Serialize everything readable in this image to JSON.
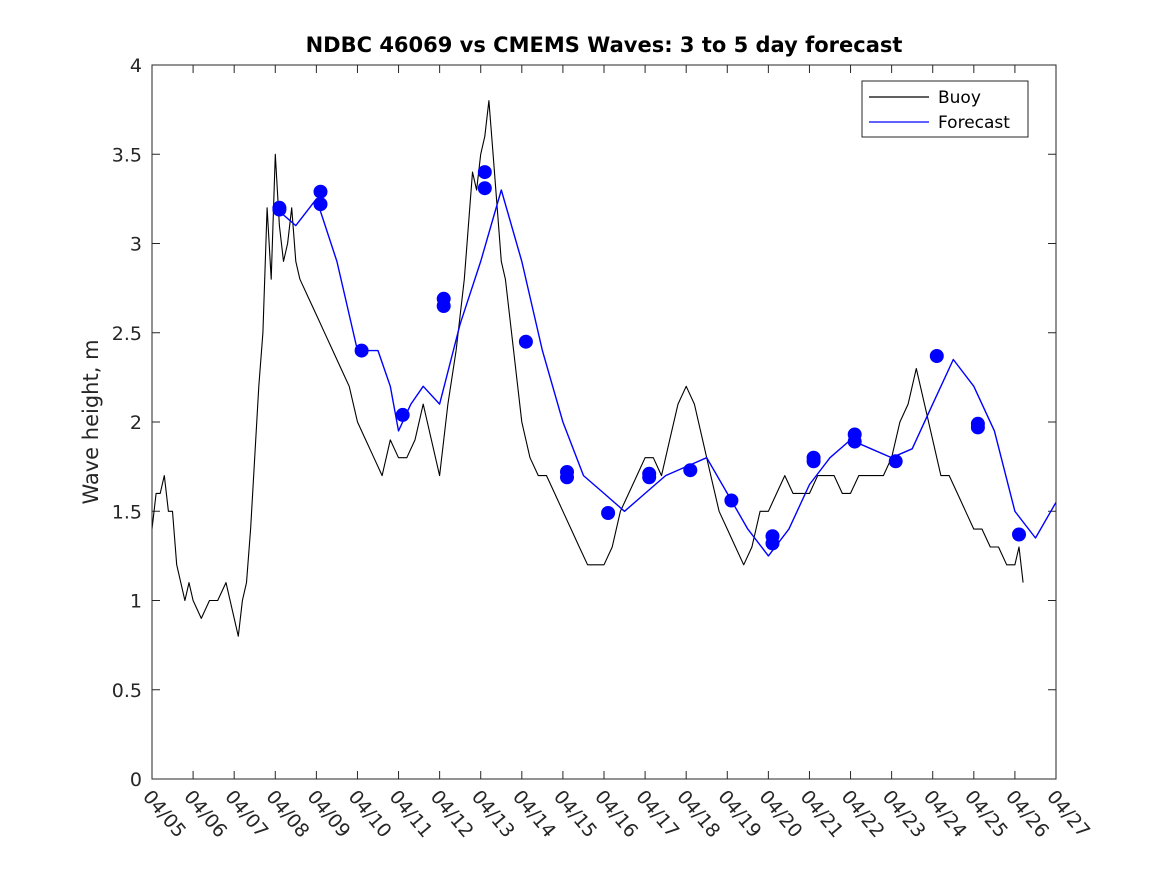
{
  "chart_data": {
    "type": "line",
    "title": "NDBC 46069 vs CMEMS Waves: 3 to 5 day forecast",
    "xlabel": "",
    "ylabel": "Wave height, m",
    "xlim": [
      "04/05",
      "04/27"
    ],
    "ylim": [
      0,
      4
    ],
    "x_ticks": [
      "04/05",
      "04/06",
      "04/07",
      "04/08",
      "04/09",
      "04/10",
      "04/11",
      "04/12",
      "04/13",
      "04/14",
      "04/15",
      "04/16",
      "04/17",
      "04/18",
      "04/19",
      "04/20",
      "04/21",
      "04/22",
      "04/23",
      "04/24",
      "04/25",
      "04/26",
      "04/27"
    ],
    "y_ticks": [
      "0",
      "0.5",
      "1",
      "1.5",
      "2",
      "2.5",
      "3",
      "3.5",
      "4"
    ],
    "grid": false,
    "legend_position": "top-right",
    "legend": [
      "Buoy",
      "Forecast"
    ],
    "colors": {
      "buoy": "#000000",
      "forecast": "#0000ff"
    },
    "series": [
      {
        "name": "Buoy",
        "x": [
          0,
          0.1,
          0.2,
          0.3,
          0.4,
          0.5,
          0.6,
          0.7,
          0.8,
          0.9,
          1.0,
          1.2,
          1.4,
          1.6,
          1.8,
          1.9,
          2.0,
          2.1,
          2.2,
          2.3,
          2.4,
          2.5,
          2.6,
          2.7,
          2.8,
          2.9,
          3.0,
          3.1,
          3.2,
          3.3,
          3.4,
          3.5,
          3.6,
          3.8,
          4.0,
          4.2,
          4.4,
          4.6,
          4.8,
          5.0,
          5.2,
          5.4,
          5.6,
          5.8,
          6.0,
          6.2,
          6.4,
          6.6,
          6.8,
          7.0,
          7.2,
          7.4,
          7.6,
          7.8,
          7.9,
          8.0,
          8.1,
          8.2,
          8.3,
          8.4,
          8.5,
          8.6,
          8.8,
          9.0,
          9.2,
          9.4,
          9.6,
          9.8,
          10.0,
          10.2,
          10.4,
          10.6,
          10.8,
          11.0,
          11.2,
          11.4,
          11.6,
          11.8,
          12.0,
          12.2,
          12.4,
          12.6,
          12.8,
          13.0,
          13.2,
          13.4,
          13.6,
          13.8,
          14.0,
          14.2,
          14.4,
          14.6,
          14.8,
          15.0,
          15.2,
          15.4,
          15.6,
          15.8,
          16.0,
          16.2,
          16.4,
          16.6,
          16.8,
          17.0,
          17.2,
          17.4,
          17.6,
          17.8,
          18.0,
          18.2,
          18.4,
          18.6,
          18.8,
          19.0,
          19.2,
          19.4,
          19.6,
          19.8,
          20.0,
          20.2,
          20.4,
          20.6,
          20.8,
          21.0,
          21.1,
          21.2
        ],
        "values": [
          1.4,
          1.6,
          1.6,
          1.7,
          1.5,
          1.5,
          1.2,
          1.1,
          1.0,
          1.1,
          1.0,
          0.9,
          1.0,
          1.0,
          1.1,
          1.0,
          0.9,
          0.8,
          1.0,
          1.1,
          1.4,
          1.8,
          2.2,
          2.5,
          3.2,
          2.8,
          3.5,
          3.1,
          2.9,
          3.0,
          3.2,
          2.9,
          2.8,
          2.7,
          2.6,
          2.5,
          2.4,
          2.3,
          2.2,
          2.0,
          1.9,
          1.8,
          1.7,
          1.9,
          1.8,
          1.8,
          1.9,
          2.1,
          1.9,
          1.7,
          2.1,
          2.4,
          2.8,
          3.4,
          3.3,
          3.5,
          3.6,
          3.8,
          3.5,
          3.2,
          2.9,
          2.8,
          2.4,
          2.0,
          1.8,
          1.7,
          1.7,
          1.6,
          1.5,
          1.4,
          1.3,
          1.2,
          1.2,
          1.2,
          1.3,
          1.5,
          1.6,
          1.7,
          1.8,
          1.8,
          1.7,
          1.9,
          2.1,
          2.2,
          2.1,
          1.9,
          1.7,
          1.5,
          1.4,
          1.3,
          1.2,
          1.3,
          1.5,
          1.5,
          1.6,
          1.7,
          1.6,
          1.6,
          1.6,
          1.7,
          1.7,
          1.7,
          1.6,
          1.6,
          1.7,
          1.7,
          1.7,
          1.7,
          1.8,
          2.0,
          2.1,
          2.3,
          2.1,
          1.9,
          1.7,
          1.7,
          1.6,
          1.5,
          1.4,
          1.4,
          1.3,
          1.3,
          1.2,
          1.2,
          1.3,
          1.1
        ]
      },
      {
        "name": "Forecast",
        "x": [
          3.0,
          3.5,
          4.0,
          4.5,
          5.0,
          5.5,
          5.8,
          6.0,
          6.3,
          6.6,
          7.0,
          7.5,
          8.0,
          8.5,
          9.0,
          9.5,
          10.0,
          10.5,
          11.0,
          11.5,
          12.0,
          12.5,
          13.0,
          13.5,
          14.0,
          14.5,
          15.0,
          15.5,
          16.0,
          16.5,
          17.0,
          17.5,
          18.0,
          18.5,
          19.0,
          19.5,
          20.0,
          20.5,
          21.0,
          21.5,
          22.0
        ],
        "values": [
          3.2,
          3.1,
          3.25,
          2.9,
          2.4,
          2.4,
          2.2,
          1.95,
          2.1,
          2.2,
          2.1,
          2.55,
          2.9,
          3.3,
          2.9,
          2.4,
          2.0,
          1.7,
          1.6,
          1.5,
          1.6,
          1.7,
          1.75,
          1.8,
          1.6,
          1.4,
          1.25,
          1.4,
          1.65,
          1.8,
          1.9,
          1.85,
          1.8,
          1.85,
          2.1,
          2.35,
          2.2,
          1.95,
          1.5,
          1.35,
          1.55
        ]
      }
    ],
    "forecast_markers": {
      "x": [
        3.1,
        3.1,
        4.1,
        4.1,
        5.1,
        6.1,
        7.1,
        7.1,
        8.1,
        8.1,
        9.1,
        10.1,
        10.1,
        11.1,
        12.1,
        12.1,
        13.1,
        14.1,
        15.1,
        15.1,
        16.1,
        16.1,
        17.1,
        17.1,
        18.1,
        19.1,
        20.1,
        20.1,
        21.1
      ],
      "values": [
        3.2,
        3.19,
        3.29,
        3.22,
        2.4,
        2.04,
        2.69,
        2.65,
        3.4,
        3.31,
        2.45,
        1.72,
        1.69,
        1.49,
        1.71,
        1.69,
        1.73,
        1.56,
        1.36,
        1.32,
        1.8,
        1.78,
        1.93,
        1.89,
        1.78,
        2.37,
        1.99,
        1.97,
        1.37
      ]
    }
  }
}
